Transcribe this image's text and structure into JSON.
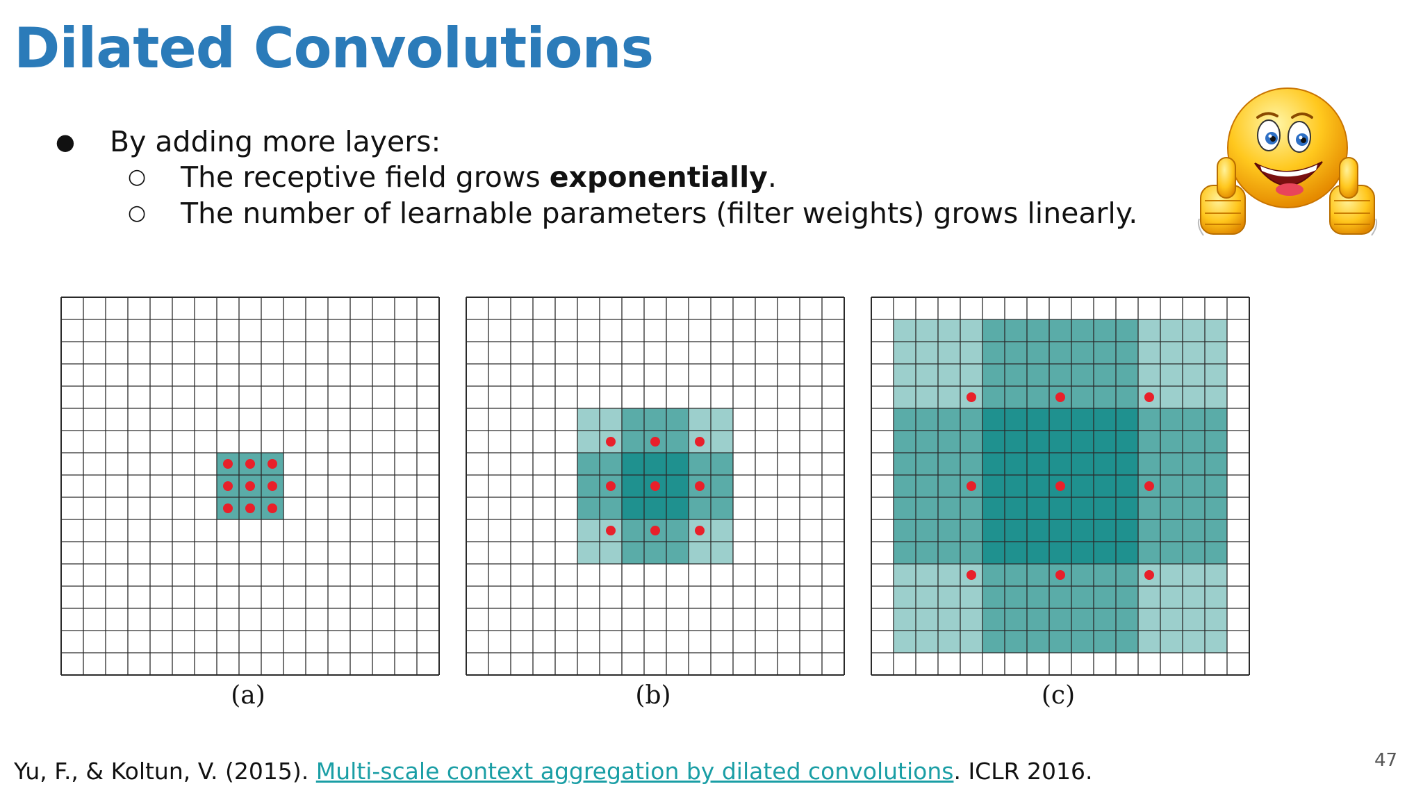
{
  "slide": {
    "title": "Dilated Convolutions",
    "page_number": "47"
  },
  "bullets": {
    "main": {
      "marker": "●",
      "text": "By adding more layers:"
    },
    "sub": [
      {
        "marker": "○",
        "text_before": "The receptive field grows ",
        "emphasis": "exponentially",
        "text_after": "."
      },
      {
        "marker": "○",
        "text": "The number of learnable parameters (filter weights) grows linearly."
      }
    ]
  },
  "decoration": {
    "emoji_icon": "thumbs-up-smiley-icon"
  },
  "figure": {
    "grid_cells_per_side": 17,
    "colors": {
      "light": "#9ccfcc",
      "medium": "#5aaca8",
      "dark": "#1f918f",
      "dot": "#e8202a",
      "grid_line": "#2a2a2a"
    },
    "panels": [
      {
        "label": "(a)",
        "dilation": 1,
        "receptive_field": "3x3",
        "shading": [
          {
            "rows": [
              7,
              9
            ],
            "cols": [
              7,
              9
            ],
            "level": "medium"
          }
        ],
        "dots": [
          [
            7,
            7
          ],
          [
            7,
            8
          ],
          [
            7,
            9
          ],
          [
            8,
            7
          ],
          [
            8,
            8
          ],
          [
            8,
            9
          ],
          [
            9,
            7
          ],
          [
            9,
            8
          ],
          [
            9,
            9
          ]
        ]
      },
      {
        "label": "(b)",
        "dilation": 2,
        "receptive_field": "7x7",
        "shading": [
          {
            "rows": [
              5,
              11
            ],
            "cols": [
              5,
              11
            ],
            "level": "light"
          },
          {
            "rows": [
              5,
              11
            ],
            "cols": [
              7,
              9
            ],
            "level": "medium"
          },
          {
            "rows": [
              7,
              9
            ],
            "cols": [
              5,
              11
            ],
            "level": "medium"
          },
          {
            "rows": [
              7,
              9
            ],
            "cols": [
              7,
              9
            ],
            "level": "dark"
          }
        ],
        "dots": [
          [
            6,
            6
          ],
          [
            6,
            8
          ],
          [
            6,
            10
          ],
          [
            8,
            6
          ],
          [
            8,
            8
          ],
          [
            8,
            10
          ],
          [
            10,
            6
          ],
          [
            10,
            8
          ],
          [
            10,
            10
          ]
        ]
      },
      {
        "label": "(c)",
        "dilation": 4,
        "receptive_field": "15x15",
        "shading": [
          {
            "rows": [
              1,
              15
            ],
            "cols": [
              1,
              15
            ],
            "level": "light"
          },
          {
            "rows": [
              1,
              15
            ],
            "cols": [
              5,
              11
            ],
            "level": "medium"
          },
          {
            "rows": [
              5,
              11
            ],
            "cols": [
              1,
              15
            ],
            "level": "medium"
          },
          {
            "rows": [
              5,
              11
            ],
            "cols": [
              5,
              11
            ],
            "level": "dark"
          }
        ],
        "dots": [
          [
            4,
            4
          ],
          [
            4,
            8
          ],
          [
            4,
            12
          ],
          [
            8,
            4
          ],
          [
            8,
            8
          ],
          [
            8,
            12
          ],
          [
            12,
            4
          ],
          [
            12,
            8
          ],
          [
            12,
            12
          ]
        ]
      }
    ]
  },
  "citation": {
    "prefix": "Yu, F., & Koltun, V. (2015). ",
    "link_text": "Multi-scale context aggregation by dilated convolutions",
    "suffix": ". ICLR 2016."
  }
}
